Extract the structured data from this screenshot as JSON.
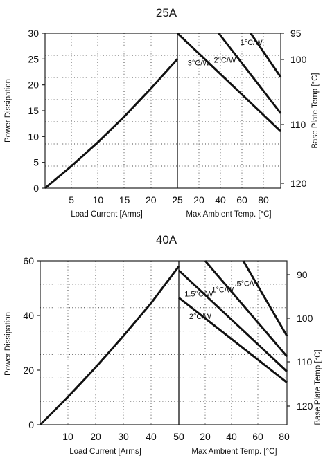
{
  "chart_data": [
    {
      "type": "line",
      "title": "25A",
      "ylabel": "Power Dissipation",
      "ylabel_right": "Base Plate Temp [°C]",
      "grid": true,
      "ylim": [
        0,
        30
      ],
      "yticks": [
        "0",
        "5",
        "10",
        "15",
        "20",
        "25",
        "30"
      ],
      "left_panel": {
        "xlabel": "Load Current  [Arms]",
        "xlim": [
          0,
          25
        ],
        "xticks": [
          "5",
          "10",
          "15",
          "20",
          "25"
        ],
        "series": [
          {
            "x": [
              0,
              5,
              10,
              15,
              20,
              25
            ],
            "y": [
              0,
              4.3,
              8.9,
              13.9,
              19.3,
              25
            ]
          }
        ]
      },
      "right_panel": {
        "xlabel": "Max Ambient Temp. [°C]",
        "xlim": [
          25,
          80
        ],
        "xticks": [
          "25",
          "20",
          "40",
          "60",
          "80"
        ],
        "base_plate_ticks": [
          "95",
          "100",
          "110",
          "120"
        ],
        "series": [
          {
            "name": "3°C/W",
            "x": [
              25,
              80
            ],
            "y": [
              30,
              11
            ]
          },
          {
            "name": "2°C/W",
            "x": [
              47,
              80
            ],
            "y": [
              30,
              14.5
            ]
          },
          {
            "name": "1°C/W",
            "x": [
              64,
              80
            ],
            "y": [
              30,
              21.5
            ]
          }
        ]
      }
    },
    {
      "type": "line",
      "title": "40A",
      "ylabel": "Power Dissipation",
      "ylabel_right": "Base Plate Temp [°C]",
      "grid": true,
      "ylim": [
        0,
        60
      ],
      "yticks": [
        "0",
        "20",
        "40",
        "60"
      ],
      "left_panel": {
        "xlabel": "Load Current  [Arms]",
        "xlim": [
          0,
          50
        ],
        "xticks": [
          "10",
          "20",
          "30",
          "40",
          "50"
        ],
        "series": [
          {
            "x": [
              0,
              10,
              20,
              30,
              40,
              50
            ],
            "y": [
              0,
              10.2,
              21,
              32.5,
              44.5,
              58
            ]
          }
        ]
      },
      "right_panel": {
        "xlabel": "Max Ambient Temp. [°C]",
        "xlim": [
          50,
          80
        ],
        "xticks": [
          "50",
          "20",
          "40",
          "60",
          "80"
        ],
        "base_plate_ticks": [
          "90",
          "100",
          "110",
          "120"
        ],
        "series": [
          {
            "name": "2°C/W",
            "x": [
              50,
              80
            ],
            "y": [
              46.5,
              15.5
            ]
          },
          {
            "name": "1.5°C/W",
            "x": [
              50,
              80
            ],
            "y": [
              56.5,
              19.5
            ]
          },
          {
            "name": "1°C/W",
            "x": [
              56,
              80
            ],
            "y": [
              62,
              25
            ]
          },
          {
            "name": ".5°C/W",
            "x": [
              67,
              80
            ],
            "y": [
              62,
              32.5
            ]
          }
        ]
      }
    }
  ]
}
